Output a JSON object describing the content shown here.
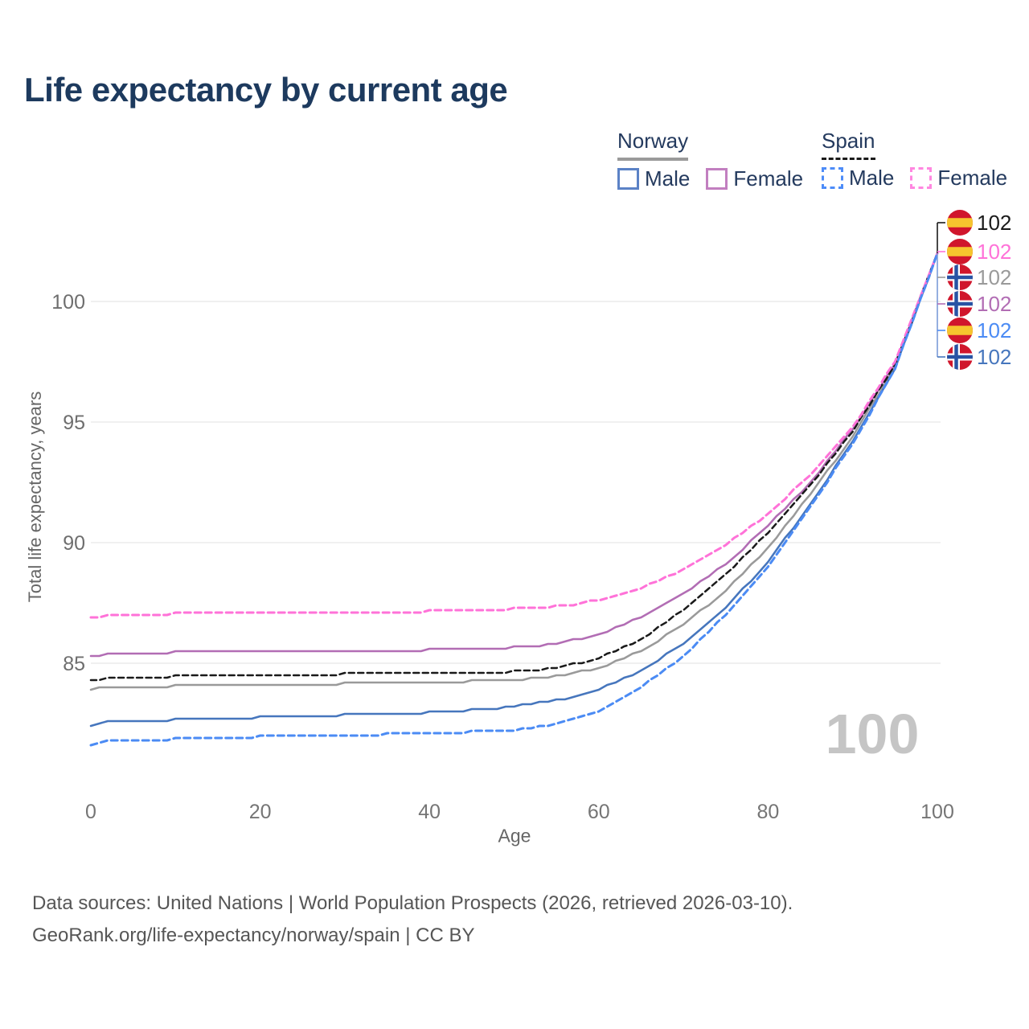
{
  "page": {
    "title": "Life expectancy by current age"
  },
  "legend": {
    "groups": [
      {
        "name": "Norway",
        "line_style": "solid",
        "line_color": "#9a9a9a",
        "items": [
          {
            "label": "Male",
            "color": "#5b82c6",
            "dashed": false
          },
          {
            "label": "Female",
            "color": "#c27fc0",
            "dashed": false
          }
        ]
      },
      {
        "name": "Spain",
        "line_style": "dashed",
        "line_color": "#1a1a1a",
        "items": [
          {
            "label": "Male",
            "color": "#4d8cf8",
            "dashed": true
          },
          {
            "label": "Female",
            "color": "#ff87e0",
            "dashed": true
          }
        ]
      }
    ]
  },
  "chart_data": {
    "type": "line",
    "title": "Life expectancy by current age",
    "xlabel": "Age",
    "ylabel": "Total life expectancy, years",
    "x_ticks": [
      0,
      20,
      40,
      60,
      80,
      100
    ],
    "y_ticks": [
      85,
      90,
      95,
      100
    ],
    "xlim": [
      0,
      100
    ],
    "ylim": [
      81,
      103
    ],
    "grid": "horizontal-only",
    "legend_position": "top-right",
    "x": [
      0,
      2,
      10,
      20,
      30,
      40,
      45,
      50,
      55,
      60,
      65,
      70,
      75,
      80,
      85,
      90,
      95,
      100
    ],
    "series": [
      {
        "name": "Norway",
        "country": "Norway",
        "sex": "Total",
        "color": "#9a9a9a",
        "dash": null,
        "width": 2.5,
        "values": [
          83.9,
          84.0,
          84.05,
          84.1,
          84.15,
          84.2,
          84.25,
          84.3,
          84.45,
          84.8,
          85.5,
          86.6,
          88.0,
          89.8,
          92.0,
          94.4,
          97.3,
          102
        ]
      },
      {
        "name": "Norway Female",
        "country": "Norway",
        "sex": "Female",
        "color": "#b26db4",
        "dash": null,
        "width": 2.5,
        "values": [
          85.25,
          85.4,
          85.45,
          85.5,
          85.5,
          85.55,
          85.6,
          85.65,
          85.8,
          86.2,
          86.9,
          87.9,
          89.1,
          90.7,
          92.5,
          94.7,
          97.4,
          102
        ]
      },
      {
        "name": "Norway Male",
        "country": "Norway",
        "sex": "Male",
        "color": "#4676bd",
        "dash": null,
        "width": 2.5,
        "values": [
          82.4,
          82.55,
          82.65,
          82.75,
          82.85,
          82.95,
          83.05,
          83.2,
          83.45,
          83.9,
          84.7,
          85.8,
          87.3,
          89.2,
          91.6,
          94.2,
          97.2,
          102
        ]
      },
      {
        "name": "Spain",
        "country": "Spain",
        "sex": "Total",
        "color": "#1a1a1a",
        "dash": [
          7,
          4.5
        ],
        "width": 2.5,
        "values": [
          84.25,
          84.4,
          84.45,
          84.5,
          84.55,
          84.6,
          84.6,
          84.65,
          84.8,
          85.2,
          86.0,
          87.2,
          88.7,
          90.4,
          92.4,
          94.6,
          97.4,
          102
        ]
      },
      {
        "name": "Spain Female",
        "country": "Spain",
        "sex": "Female",
        "color": "#ff72d8",
        "dash": [
          8,
          5
        ],
        "width": 3,
        "values": [
          86.85,
          87.0,
          87.05,
          87.1,
          87.1,
          87.15,
          87.2,
          87.25,
          87.35,
          87.6,
          88.1,
          88.9,
          89.9,
          91.2,
          92.8,
          94.8,
          97.5,
          102
        ]
      },
      {
        "name": "Spain Male",
        "country": "Spain",
        "sex": "Male",
        "color": "#4b8bf4",
        "dash": [
          8,
          5
        ],
        "width": 3,
        "values": [
          81.6,
          81.75,
          81.85,
          81.95,
          82.0,
          82.1,
          82.15,
          82.2,
          82.45,
          83.0,
          84.0,
          85.3,
          87.0,
          89.0,
          91.5,
          94.1,
          97.2,
          102
        ]
      }
    ],
    "end_labels": [
      {
        "series": "Spain",
        "flag": "spain",
        "value": "102",
        "color": "#1a1a1a"
      },
      {
        "series": "Spain Female",
        "flag": "spain",
        "value": "102",
        "color": "#ff72d8"
      },
      {
        "series": "Norway",
        "flag": "norway",
        "value": "102",
        "color": "#9a9a9a"
      },
      {
        "series": "Norway Female",
        "flag": "norway",
        "value": "102",
        "color": "#b26db4"
      },
      {
        "series": "Spain Male",
        "flag": "spain",
        "value": "102",
        "color": "#4b8bf4"
      },
      {
        "series": "Norway Male",
        "flag": "norway",
        "value": "102",
        "color": "#4676bd"
      }
    ],
    "age_counter": "100",
    "flag_colors": {
      "spain_red": "#d0162c",
      "spain_yellow": "#f6c52e",
      "norway_red": "#d0162c",
      "norway_blue": "#2853a4",
      "norway_white": "#ffffff"
    }
  },
  "footer": {
    "line1": "Data sources: United Nations | World Population Prospects (2026, retrieved 2026-03-10).",
    "line2": "GeoRank.org/life-expectancy/norway/spain | CC BY"
  }
}
